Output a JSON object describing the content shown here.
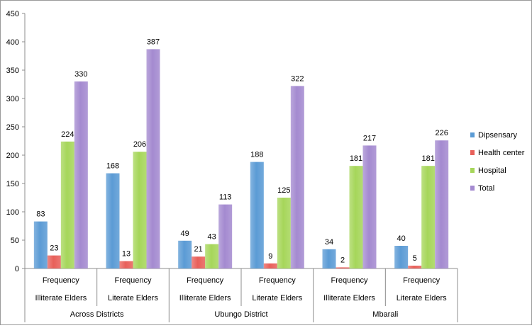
{
  "chart_data": {
    "type": "bar",
    "title": "",
    "xlabel": "",
    "ylabel": "",
    "ylim": [
      0,
      450
    ],
    "yticks": [
      0,
      50,
      100,
      150,
      200,
      250,
      300,
      350,
      400,
      450
    ],
    "ytick_labels": [
      "0",
      "50",
      "100",
      "150",
      "200",
      "250",
      "300",
      "350",
      "400",
      "450"
    ],
    "grid": false,
    "legend_position": "right",
    "categories": [
      {
        "level1": "Frequency",
        "level2": "Illiterate Elders",
        "level3": "Across Districts"
      },
      {
        "level1": "Frequency",
        "level2": "Literate Elders",
        "level3": "Across Districts"
      },
      {
        "level1": "Frequency",
        "level2": "Illiterate Elders",
        "level3": "Ubungo District"
      },
      {
        "level1": "Frequency",
        "level2": "Literate Elders",
        "level3": "Ubungo District"
      },
      {
        "level1": "Frequency",
        "level2": "Illiterate Elders",
        "level3": "Mbarali"
      },
      {
        "level1": "Frequency",
        "level2": "Literate Elders",
        "level3": "Mbarali"
      }
    ],
    "groups": [
      {
        "name": "Across Districts",
        "span": 2
      },
      {
        "name": "Ubungo District",
        "span": 2
      },
      {
        "name": "Mbarali",
        "span": 2
      }
    ],
    "series": [
      {
        "name": "Dipsensary",
        "color": "#5b9bd5",
        "values": [
          83,
          168,
          49,
          188,
          34,
          40
        ]
      },
      {
        "name": "Health center",
        "color": "#e8605a",
        "values": [
          23,
          13,
          21,
          9,
          2,
          5
        ]
      },
      {
        "name": "Hospital",
        "color": "#a6d65a",
        "values": [
          224,
          206,
          43,
          125,
          181,
          181
        ]
      },
      {
        "name": "Total",
        "color": "#a48ad0",
        "values": [
          330,
          387,
          113,
          322,
          217,
          226
        ]
      }
    ]
  }
}
